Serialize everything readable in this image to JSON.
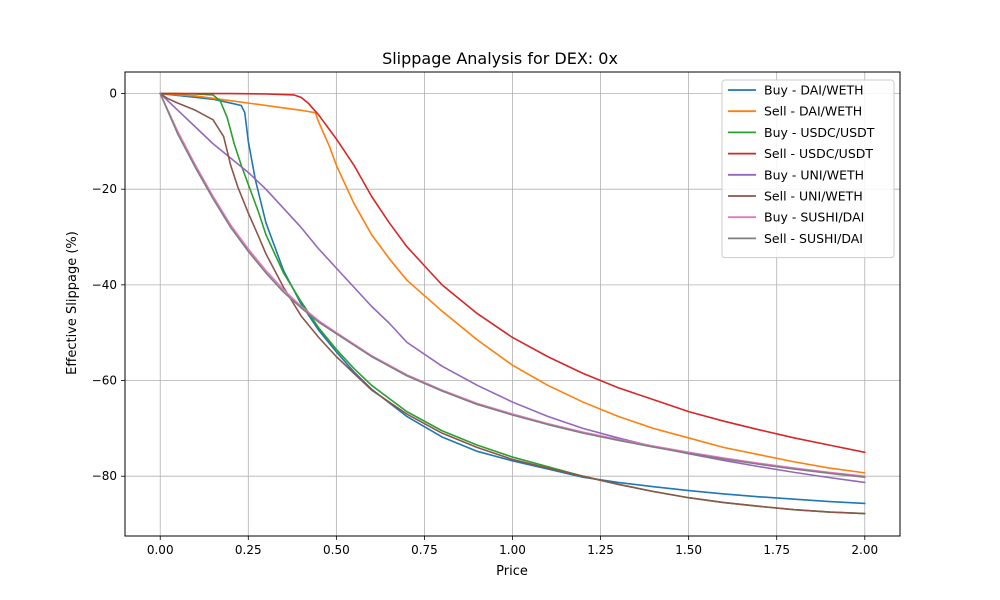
{
  "chart_data": {
    "type": "line",
    "title": "Slippage Analysis for DEX: 0x",
    "xlabel": "Price",
    "ylabel": "Effective Slippage (%)",
    "xlim": [
      -0.1,
      2.1
    ],
    "ylim": [
      -92.5,
      4.5
    ],
    "xticks": [
      0.0,
      0.25,
      0.5,
      0.75,
      1.0,
      1.25,
      1.5,
      1.75,
      2.0
    ],
    "xtick_labels": [
      "0.00",
      "0.25",
      "0.50",
      "0.75",
      "1.00",
      "1.25",
      "1.50",
      "1.75",
      "2.00"
    ],
    "yticks": [
      0,
      -20,
      -40,
      -60,
      -80
    ],
    "ytick_labels": [
      "0",
      "−20",
      "−40",
      "−60",
      "−80"
    ],
    "grid": true,
    "legend_position": "top-right",
    "series": [
      {
        "name": "Buy - DAI/WETH",
        "color": "#1f77b4",
        "x": [
          0,
          0.05,
          0.1,
          0.15,
          0.2,
          0.23,
          0.24,
          0.25,
          0.27,
          0.3,
          0.35,
          0.4,
          0.45,
          0.5,
          0.55,
          0.6,
          0.7,
          0.8,
          0.9,
          1.0,
          1.1,
          1.2,
          1.3,
          1.4,
          1.5,
          1.6,
          1.7,
          1.8,
          1.9,
          2.0
        ],
        "y": [
          0,
          -0.4,
          -0.8,
          -1.2,
          -2.0,
          -2.5,
          -4.0,
          -10.0,
          -18.0,
          -27.0,
          -37.0,
          -44.0,
          -49.5,
          -54.0,
          -58.2,
          -61.8,
          -67.5,
          -71.8,
          -74.8,
          -76.8,
          -78.5,
          -80.2,
          -81.3,
          -82.2,
          -83.0,
          -83.7,
          -84.3,
          -84.8,
          -85.3,
          -85.7
        ]
      },
      {
        "name": "Sell - DAI/WETH",
        "color": "#ff7f0e",
        "x": [
          0,
          0.1,
          0.2,
          0.3,
          0.4,
          0.44,
          0.45,
          0.48,
          0.5,
          0.55,
          0.6,
          0.65,
          0.7,
          0.8,
          0.9,
          1.0,
          1.1,
          1.2,
          1.3,
          1.4,
          1.5,
          1.6,
          1.7,
          1.8,
          1.9,
          2.0
        ],
        "y": [
          0,
          -0.5,
          -1.5,
          -2.5,
          -3.5,
          -4.0,
          -6.0,
          -11.0,
          -15.0,
          -23.0,
          -29.5,
          -34.5,
          -39.0,
          -45.5,
          -51.5,
          -56.8,
          -61.0,
          -64.5,
          -67.5,
          -70.0,
          -72.0,
          -74.0,
          -75.5,
          -77.0,
          -78.3,
          -79.3
        ]
      },
      {
        "name": "Buy - USDC/USDT",
        "color": "#2ca02c",
        "x": [
          0,
          0.05,
          0.1,
          0.15,
          0.17,
          0.19,
          0.21,
          0.23,
          0.25,
          0.28,
          0.3,
          0.35,
          0.4,
          0.45,
          0.5,
          0.55,
          0.6,
          0.7,
          0.8,
          0.9,
          1.0,
          1.1,
          1.2,
          1.3,
          1.4,
          1.5,
          1.6,
          1.7,
          1.8,
          1.9,
          2.0
        ],
        "y": [
          0,
          0,
          -0.1,
          -0.3,
          -1.5,
          -5.0,
          -10.5,
          -15.0,
          -19.0,
          -25.0,
          -29.5,
          -37.5,
          -43.5,
          -49.0,
          -53.5,
          -57.5,
          -61.0,
          -66.5,
          -70.5,
          -73.5,
          -76.0,
          -78.0,
          -80.0,
          -81.7,
          -83.2,
          -84.5,
          -85.5,
          -86.3,
          -87.0,
          -87.5,
          -87.8
        ]
      },
      {
        "name": "Sell - USDC/USDT",
        "color": "#d62728",
        "x": [
          0,
          0.1,
          0.2,
          0.3,
          0.38,
          0.4,
          0.42,
          0.45,
          0.5,
          0.55,
          0.6,
          0.65,
          0.7,
          0.75,
          0.8,
          0.9,
          1.0,
          1.1,
          1.2,
          1.3,
          1.4,
          1.5,
          1.6,
          1.7,
          1.8,
          1.9,
          2.0
        ],
        "y": [
          0,
          0,
          0,
          -0.1,
          -0.3,
          -0.8,
          -2.0,
          -4.5,
          -9.5,
          -15.0,
          -21.5,
          -27.0,
          -32.0,
          -36.0,
          -40.0,
          -46.0,
          -51.0,
          -55.0,
          -58.5,
          -61.5,
          -64.0,
          -66.5,
          -68.5,
          -70.3,
          -72.0,
          -73.5,
          -75.0
        ]
      },
      {
        "name": "Buy - UNI/WETH",
        "color": "#9467bd",
        "x": [
          0,
          0.05,
          0.1,
          0.15,
          0.2,
          0.25,
          0.3,
          0.35,
          0.4,
          0.45,
          0.5,
          0.55,
          0.6,
          0.65,
          0.7,
          0.8,
          0.9,
          1.0,
          1.1,
          1.2,
          1.3,
          1.4,
          1.5,
          1.6,
          1.7,
          1.8,
          1.9,
          2.0
        ],
        "y": [
          0,
          -3.5,
          -7.0,
          -10.5,
          -13.5,
          -16.5,
          -20.0,
          -24.0,
          -28.0,
          -32.5,
          -36.5,
          -40.5,
          -44.5,
          -48.0,
          -52.0,
          -57.0,
          -61.0,
          -64.5,
          -67.5,
          -70.0,
          -72.0,
          -73.8,
          -75.3,
          -76.7,
          -78.0,
          -79.2,
          -80.3,
          -81.3
        ]
      },
      {
        "name": "Sell - UNI/WETH",
        "color": "#8c564b",
        "x": [
          0,
          0.02,
          0.05,
          0.1,
          0.15,
          0.18,
          0.2,
          0.22,
          0.25,
          0.28,
          0.3,
          0.35,
          0.4,
          0.45,
          0.5,
          0.55,
          0.6,
          0.7,
          0.8,
          0.9,
          1.0,
          1.1,
          1.2,
          1.3,
          1.4,
          1.5,
          1.6,
          1.7,
          1.8,
          1.9,
          2.0
        ],
        "y": [
          0,
          -1.0,
          -2.0,
          -3.5,
          -5.5,
          -9.0,
          -15.0,
          -19.5,
          -25.0,
          -30.0,
          -33.5,
          -40.5,
          -46.5,
          -51.0,
          -55.0,
          -58.5,
          -62.0,
          -67.0,
          -71.0,
          -74.0,
          -76.5,
          -78.3,
          -80.0,
          -81.7,
          -83.2,
          -84.5,
          -85.5,
          -86.3,
          -87.0,
          -87.5,
          -87.8
        ]
      },
      {
        "name": "Buy - SUSHI/DAI",
        "color": "#e377c2",
        "x": [
          0,
          0.05,
          0.1,
          0.15,
          0.2,
          0.25,
          0.3,
          0.35,
          0.4,
          0.45,
          0.5,
          0.6,
          0.7,
          0.8,
          0.9,
          1.0,
          1.1,
          1.2,
          1.3,
          1.4,
          1.5,
          1.6,
          1.7,
          1.8,
          1.9,
          2.0
        ],
        "y": [
          0,
          -8.0,
          -15.0,
          -21.5,
          -27.5,
          -32.5,
          -37.0,
          -41.0,
          -44.5,
          -47.5,
          -50.0,
          -54.8,
          -58.8,
          -62.0,
          -64.8,
          -67.0,
          -69.0,
          -70.8,
          -72.3,
          -73.7,
          -75.0,
          -76.2,
          -77.3,
          -78.3,
          -79.2,
          -80.0
        ]
      },
      {
        "name": "Sell - SUSHI/DAI",
        "color": "#7f7f7f",
        "x": [
          0,
          0.05,
          0.1,
          0.15,
          0.2,
          0.25,
          0.3,
          0.35,
          0.4,
          0.45,
          0.5,
          0.6,
          0.7,
          0.8,
          0.9,
          1.0,
          1.1,
          1.2,
          1.3,
          1.4,
          1.5,
          1.6,
          1.7,
          1.8,
          1.9,
          2.0
        ],
        "y": [
          0,
          -8.5,
          -15.5,
          -22.0,
          -28.0,
          -33.0,
          -37.5,
          -41.5,
          -44.8,
          -47.8,
          -50.2,
          -55.0,
          -59.0,
          -62.2,
          -65.0,
          -67.2,
          -69.2,
          -71.0,
          -72.5,
          -73.9,
          -75.2,
          -76.4,
          -77.5,
          -78.5,
          -79.4,
          -80.2
        ]
      }
    ]
  }
}
